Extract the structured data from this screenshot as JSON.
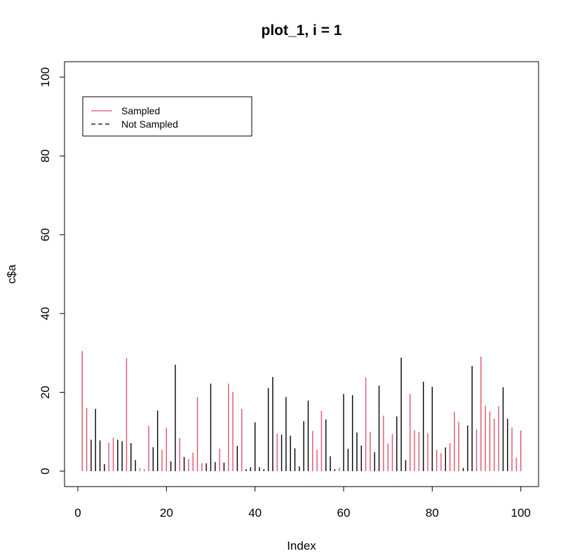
{
  "chart_data": {
    "type": "bar",
    "title": "plot_1, i = 1",
    "xlabel": "Index",
    "ylabel": "c$a",
    "xlim": [
      1,
      100
    ],
    "ylim": [
      0,
      100
    ],
    "x_ticks": [
      0,
      20,
      40,
      60,
      80,
      100
    ],
    "y_ticks": [
      0,
      20,
      40,
      60,
      80,
      100
    ],
    "legend": {
      "position": "top-left",
      "entries": [
        {
          "label": "Sampled",
          "color": "#DF536B",
          "linestyle": "solid"
        },
        {
          "label": "Not Sampled",
          "color": "#000000",
          "linestyle": "dashed"
        }
      ]
    },
    "colors": {
      "sampled": "#DF536B",
      "not_sampled": "#000000"
    },
    "x": [
      1,
      2,
      3,
      4,
      5,
      6,
      7,
      8,
      9,
      10,
      11,
      12,
      13,
      14,
      15,
      16,
      17,
      18,
      19,
      20,
      21,
      22,
      23,
      24,
      25,
      26,
      27,
      28,
      29,
      30,
      31,
      32,
      33,
      34,
      35,
      36,
      37,
      38,
      39,
      40,
      41,
      42,
      43,
      44,
      45,
      46,
      47,
      48,
      49,
      50,
      51,
      52,
      53,
      54,
      55,
      56,
      57,
      58,
      59,
      60,
      61,
      62,
      63,
      64,
      65,
      66,
      67,
      68,
      69,
      70,
      71,
      72,
      73,
      74,
      75,
      76,
      77,
      78,
      79,
      80,
      81,
      82,
      83,
      84,
      85,
      86,
      87,
      88,
      89,
      90,
      91,
      92,
      93,
      94,
      95,
      96,
      97,
      98,
      99,
      100
    ],
    "values": [
      30.5,
      16.0,
      8.0,
      15.8,
      7.8,
      1.8,
      7.2,
      8.5,
      8.0,
      7.6,
      28.7,
      7.1,
      2.8,
      0.7,
      0.5,
      11.5,
      6.1,
      15.4,
      5.4,
      11.0,
      2.5,
      27.0,
      8.4,
      3.6,
      3.0,
      4.7,
      18.8,
      2.0,
      2.0,
      22.2,
      2.3,
      5.7,
      2.2,
      22.2,
      20.1,
      6.4,
      15.8,
      0.5,
      1.0,
      12.4,
      1.0,
      0.5,
      21.1,
      23.9,
      9.5,
      9.3,
      18.8,
      9.0,
      5.8,
      1.2,
      12.7,
      17.9,
      10.2,
      5.4,
      15.3,
      13.1,
      3.8,
      0.5,
      0.9,
      19.6,
      5.7,
      19.3,
      9.8,
      6.5,
      23.8,
      10.0,
      4.8,
      21.7,
      14.1,
      7.0,
      9.4,
      13.9,
      28.8,
      2.8,
      19.6,
      10.4,
      10.0,
      22.7,
      9.6,
      21.4,
      5.4,
      4.6,
      6.0,
      7.1,
      15.0,
      12.5,
      0.8,
      11.6,
      26.7,
      10.6,
      29.1,
      16.6,
      15.1,
      13.3,
      16.5,
      21.3,
      13.3,
      11.1,
      3.4,
      10.3
    ],
    "sampled": [
      1,
      1,
      0,
      0,
      0,
      0,
      1,
      1,
      0,
      0,
      1,
      0,
      0,
      1,
      1,
      1,
      0,
      0,
      1,
      1,
      0,
      0,
      1,
      0,
      1,
      1,
      1,
      1,
      0,
      0,
      0,
      1,
      0,
      1,
      1,
      0,
      1,
      0,
      0,
      0,
      0,
      0,
      0,
      0,
      1,
      0,
      0,
      0,
      0,
      0,
      0,
      0,
      1,
      1,
      1,
      0,
      0,
      0,
      1,
      0,
      0,
      0,
      0,
      0,
      1,
      1,
      0,
      0,
      1,
      1,
      1,
      0,
      0,
      0,
      1,
      1,
      1,
      0,
      1,
      0,
      1,
      1,
      0,
      1,
      1,
      1,
      0,
      0,
      0,
      1,
      1,
      1,
      1,
      1,
      1,
      0,
      0,
      1,
      1,
      1
    ]
  }
}
